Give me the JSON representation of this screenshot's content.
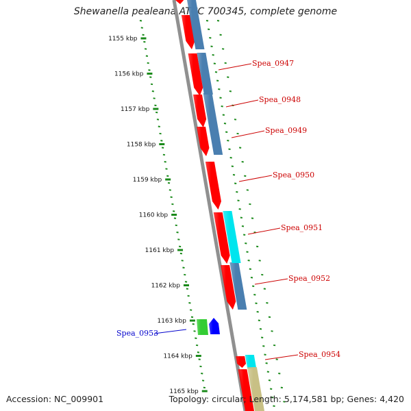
{
  "title": "Shewanella pealeana ATCC 700345, complete genome",
  "footer": {
    "accession": "Accession: NC_009901",
    "topology": "Topology: circular; Length: 5,174,581 bp; Genes: 4,420"
  },
  "kbp_labels": [
    "1155 kbp",
    "1156 kbp",
    "1157 kbp",
    "1158 kbp",
    "1159 kbp",
    "1160 kbp",
    "1161 kbp",
    "1162 kbp",
    "1163 kbp",
    "1164 kbp",
    "1165 kbp"
  ],
  "gene_labels": [
    {
      "id": "Spea_0947",
      "color": "#cc0000"
    },
    {
      "id": "Spea_0948",
      "color": "#cc0000"
    },
    {
      "id": "Spea_0949",
      "color": "#cc0000"
    },
    {
      "id": "Spea_0950",
      "color": "#cc0000"
    },
    {
      "id": "Spea_0951",
      "color": "#cc0000"
    },
    {
      "id": "Spea_0952",
      "color": "#cc0000"
    },
    {
      "id": "Spea_0953",
      "color": "#0000cc"
    },
    {
      "id": "Spea_0954",
      "color": "#cc0000"
    }
  ],
  "colors": {
    "cds": "#ff0000",
    "blue": "#4a7fb0",
    "cyan": "#00e5ee",
    "green": "#33cc33",
    "dark_blue": "#0000ff",
    "khaki": "#c8c085",
    "ruler": "#1a8a1a",
    "backbone": "#888888"
  }
}
